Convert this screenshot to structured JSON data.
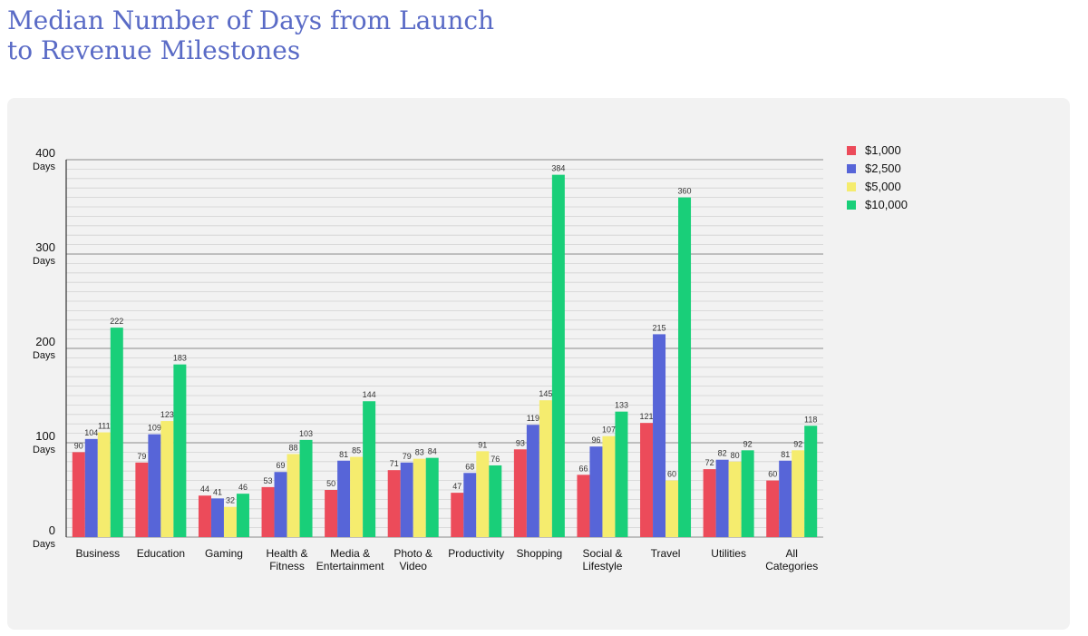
{
  "title_line1": "Median Number of Days from Launch",
  "title_line2": "to Revenue Milestones",
  "chart_data": {
    "type": "bar",
    "title": "Median Number of Days from Launch to Revenue Milestones",
    "xlabel": "",
    "ylabel": "",
    "ylim": [
      0,
      400
    ],
    "y_unit": "Days",
    "y_ticks": [
      0,
      100,
      200,
      300,
      400
    ],
    "grid": true,
    "legend_position": "top-right",
    "categories": [
      [
        "Business"
      ],
      [
        "Education"
      ],
      [
        "Gaming"
      ],
      [
        "Health &",
        "Fitness"
      ],
      [
        "Media &",
        "Entertainment"
      ],
      [
        "Photo &",
        "Video"
      ],
      [
        "Productivity"
      ],
      [
        "Shopping"
      ],
      [
        "Social &",
        "Lifestyle"
      ],
      [
        "Travel"
      ],
      [
        "Utilities"
      ],
      [
        "All",
        "Categories"
      ]
    ],
    "series": [
      {
        "name": "$1,000",
        "color": "#ec4b5a",
        "values": [
          90,
          79,
          44,
          53,
          50,
          71,
          47,
          93,
          66,
          121,
          72,
          60
        ]
      },
      {
        "name": "$2,500",
        "color": "#5765d8",
        "values": [
          104,
          109,
          41,
          69,
          81,
          79,
          68,
          119,
          96,
          215,
          82,
          81
        ]
      },
      {
        "name": "$5,000",
        "color": "#f5ec6e",
        "values": [
          111,
          123,
          32,
          88,
          85,
          83,
          91,
          145,
          107,
          60,
          80,
          92
        ]
      },
      {
        "name": "$10,000",
        "color": "#19cf79",
        "values": [
          222,
          183,
          46,
          103,
          144,
          84,
          76,
          384,
          133,
          360,
          92,
          118
        ]
      }
    ]
  }
}
